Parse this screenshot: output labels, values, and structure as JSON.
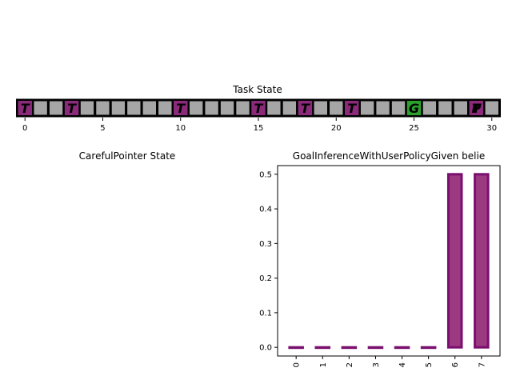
{
  "chart_data": [
    {
      "type": "grid",
      "title": "Task State",
      "cells": 31,
      "cell_color": "#a6a6a6",
      "xticks": [
        0,
        5,
        10,
        15,
        20,
        25,
        30
      ],
      "markers": [
        {
          "index": 0,
          "label": "T",
          "color": "#8b2a7a"
        },
        {
          "index": 3,
          "label": "T",
          "color": "#8b2a7a"
        },
        {
          "index": 10,
          "label": "T",
          "color": "#8b2a7a"
        },
        {
          "index": 15,
          "label": "T",
          "color": "#8b2a7a"
        },
        {
          "index": 18,
          "label": "T",
          "color": "#8b2a7a"
        },
        {
          "index": 21,
          "label": "T",
          "color": "#8b2a7a"
        },
        {
          "index": 25,
          "label": "G",
          "color": "#2ca02c"
        },
        {
          "index": 29,
          "label": "P",
          "color": "#2338b8"
        },
        {
          "index": 29,
          "label": "T",
          "color": "#8b2a7a"
        }
      ]
    },
    {
      "type": "empty",
      "title": "CarefulPointer State"
    },
    {
      "type": "bar",
      "title": "GoalInferenceWithUserPolicyGiven belie",
      "categories": [
        "0",
        "1",
        "2",
        "3",
        "4",
        "5",
        "6",
        "7"
      ],
      "values": [
        0,
        0,
        0,
        0,
        0,
        0,
        0.5,
        0.5
      ],
      "ylim": [
        -0.025,
        0.525
      ],
      "yticks": [
        "0.0",
        "0.1",
        "0.2",
        "0.3",
        "0.4",
        "0.5"
      ],
      "bar_color": "#9b3a80",
      "edge_color": "#7a0f6e"
    }
  ]
}
